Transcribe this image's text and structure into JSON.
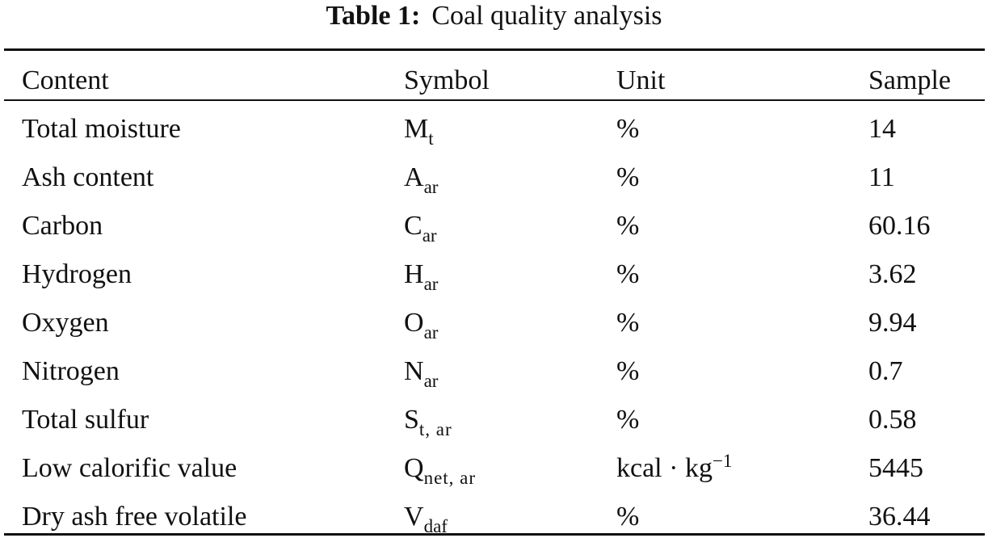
{
  "caption": {
    "label": "Table 1:",
    "text": "Coal quality analysis"
  },
  "table": {
    "headers": {
      "content": "Content",
      "symbol": "Symbol",
      "unit": "Unit",
      "sample": "Sample"
    },
    "rows": [
      {
        "content": "Total moisture",
        "symbol_base": "M",
        "symbol_sub": "t",
        "unit": "%",
        "unit_base": "",
        "unit_sup": "",
        "sample": "14"
      },
      {
        "content": "Ash content",
        "symbol_base": "A",
        "symbol_sub": "ar",
        "unit": "%",
        "unit_base": "",
        "unit_sup": "",
        "sample": "11"
      },
      {
        "content": "Carbon",
        "symbol_base": "C",
        "symbol_sub": "ar",
        "unit": "%",
        "unit_base": "",
        "unit_sup": "",
        "sample": "60.16"
      },
      {
        "content": "Hydrogen",
        "symbol_base": "H",
        "symbol_sub": "ar",
        "unit": "%",
        "unit_base": "",
        "unit_sup": "",
        "sample": "3.62"
      },
      {
        "content": "Oxygen",
        "symbol_base": "O",
        "symbol_sub": "ar",
        "unit": "%",
        "unit_base": "",
        "unit_sup": "",
        "sample": "9.94"
      },
      {
        "content": "Nitrogen",
        "symbol_base": "N",
        "symbol_sub": "ar",
        "unit": "%",
        "unit_base": "",
        "unit_sup": "",
        "sample": "0.7"
      },
      {
        "content": "Total sulfur",
        "symbol_base": "S",
        "symbol_sub": "t, ar",
        "unit": "%",
        "unit_base": "",
        "unit_sup": "",
        "sample": "0.58"
      },
      {
        "content": "Low calorific value",
        "symbol_base": "Q",
        "symbol_sub": "net, ar",
        "unit": "",
        "unit_base": "kcal · kg",
        "unit_sup": "−1",
        "sample": "5445"
      },
      {
        "content": "Dry ash free volatile",
        "symbol_base": "V",
        "symbol_sub": "daf",
        "unit": "%",
        "unit_base": "",
        "unit_sup": "",
        "sample": "36.44"
      }
    ]
  }
}
